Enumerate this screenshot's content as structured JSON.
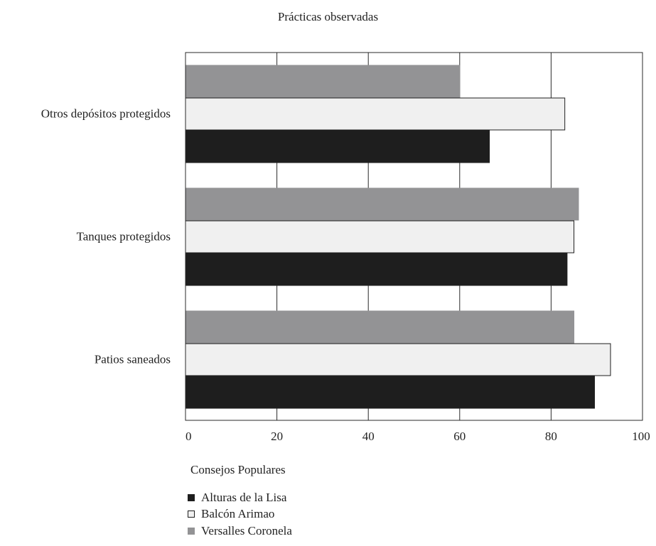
{
  "chart_data": {
    "type": "bar",
    "orientation": "horizontal",
    "title": "Prácticas observadas",
    "categories": [
      "Otros depósitos protegidos",
      "Tanques protegidos",
      "Patios saneados"
    ],
    "series": [
      {
        "name": "Alturas de la Lisa",
        "color": "#1e1e1e",
        "values": [
          66.5,
          83.5,
          89.5
        ]
      },
      {
        "name": "Balcón Arimao",
        "color": "#f0f0f0",
        "values": [
          83,
          85,
          93
        ]
      },
      {
        "name": "Versalles Coronela",
        "color": "#939395",
        "values": [
          60,
          86,
          85
        ]
      }
    ],
    "bar_order_top_to_bottom": [
      "Versalles Coronela",
      "Balcón Arimao",
      "Alturas de la Lisa"
    ],
    "xlim": [
      0,
      100
    ],
    "xticks": [
      0,
      20,
      40,
      60,
      80,
      100
    ],
    "grid": "vertical",
    "legend_title": "Consejos Populares",
    "legend_position": "bottom-left"
  }
}
